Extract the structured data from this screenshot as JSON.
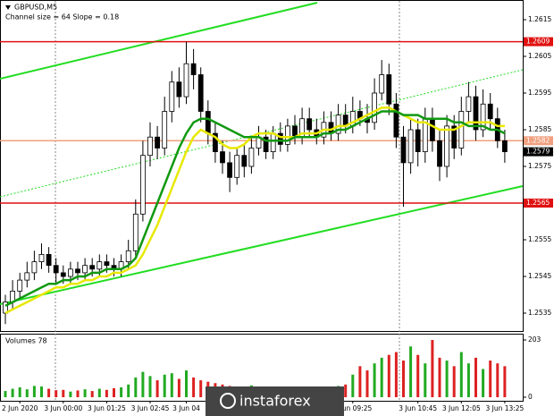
{
  "chart_data": {
    "type": "candlestick",
    "title": "GBPUSD,M5",
    "subtitle": "Channel size = 64 Slope = 0.18",
    "watermark": "instaforex",
    "categories": [
      null,
      null,
      "2 Jun 2020",
      null,
      null,
      null,
      null,
      null,
      "3 Jun 00:00",
      null,
      null,
      null,
      null,
      null,
      "3 Jun 01:25",
      null,
      null,
      null,
      null,
      null,
      "3 Jun 02:45",
      null,
      null,
      null,
      null,
      "3 Jun 04",
      null,
      null,
      null,
      null,
      null,
      null,
      null,
      null,
      null,
      null,
      null,
      null,
      null,
      null,
      null,
      null,
      null,
      null,
      null,
      null,
      null,
      null,
      "3 Jun 09:25",
      null,
      null,
      null,
      null,
      null,
      null,
      null,
      null,
      "3 Jun 10:45",
      null,
      null,
      null,
      null,
      null,
      "3 Jun 12:05",
      null,
      null,
      null,
      null,
      null,
      "3 Jun 13:25"
    ],
    "open": [
      1.2535,
      1.2538,
      1.2541,
      1.2544,
      1.2546,
      1.2549,
      1.2551,
      1.2548,
      1.2546,
      1.2545,
      1.2547,
      1.2546,
      1.2548,
      1.2547,
      1.2549,
      1.2548,
      1.2547,
      1.2549,
      1.2552,
      1.2562,
      1.2578,
      1.2583,
      1.258,
      1.259,
      1.2598,
      1.2594,
      1.2603,
      1.26,
      1.259,
      1.2584,
      1.2579,
      1.2576,
      1.2572,
      1.2578,
      1.2575,
      1.258,
      1.2583,
      1.2579,
      1.2584,
      1.2581,
      1.2586,
      1.2583,
      1.2588,
      1.2585,
      1.2583,
      1.2587,
      1.2584,
      1.2589,
      1.2586,
      1.259,
      1.2588,
      1.2587,
      1.2595,
      1.26,
      1.2592,
      1.2583,
      1.2576,
      1.2585,
      1.2579,
      1.2588,
      1.2582,
      1.2575,
      1.2586,
      1.258,
      1.259,
      1.2594,
      1.2585,
      1.2592,
      1.2588,
      1.2582
    ],
    "high": [
      1.254,
      1.2544,
      1.2546,
      1.2549,
      1.2552,
      1.2554,
      1.2553,
      1.255,
      1.2548,
      1.2549,
      1.2549,
      1.255,
      1.255,
      1.2551,
      1.2551,
      1.255,
      1.2551,
      1.2555,
      1.2566,
      1.2582,
      1.2587,
      1.2586,
      1.2594,
      1.2601,
      1.2602,
      1.2609,
      1.2607,
      1.2602,
      1.2593,
      1.2587,
      1.2582,
      1.2579,
      1.258,
      1.2581,
      1.2583,
      1.2586,
      1.2585,
      1.2586,
      1.2587,
      1.2588,
      1.2589,
      1.2591,
      1.2591,
      1.2588,
      1.259,
      1.259,
      1.2592,
      1.2592,
      1.2594,
      1.2593,
      1.2592,
      1.2599,
      1.2604,
      1.2603,
      1.2595,
      1.2586,
      1.2588,
      1.2588,
      1.2591,
      1.2591,
      1.2585,
      1.2589,
      1.2589,
      1.2594,
      1.2598,
      1.2597,
      1.2596,
      1.2595,
      1.2591,
      1.2585
    ],
    "low": [
      1.2532,
      1.2536,
      1.2539,
      1.2542,
      1.2544,
      1.2547,
      1.2546,
      1.2543,
      1.2543,
      1.2543,
      1.2544,
      1.2544,
      1.2545,
      1.2545,
      1.2546,
      1.2545,
      1.2545,
      1.2547,
      1.255,
      1.256,
      1.2575,
      1.2577,
      1.2578,
      1.2587,
      1.2591,
      1.2592,
      1.2596,
      1.2587,
      1.2581,
      1.2576,
      1.2573,
      1.2568,
      1.257,
      1.2572,
      1.2573,
      1.2578,
      1.2577,
      1.2577,
      1.2579,
      1.2579,
      1.2581,
      1.2581,
      1.2583,
      1.2581,
      1.2581,
      1.2582,
      1.2582,
      1.2584,
      1.2584,
      1.2586,
      1.2584,
      1.2585,
      1.2593,
      1.2589,
      1.258,
      1.2564,
      1.2573,
      1.2575,
      1.2576,
      1.2579,
      1.2571,
      1.2572,
      1.2577,
      1.2578,
      1.2587,
      1.2582,
      1.2583,
      1.2585,
      1.258,
      1.2576
    ],
    "close": [
      1.2538,
      1.2541,
      1.2544,
      1.2546,
      1.2549,
      1.2551,
      1.2548,
      1.2546,
      1.2545,
      1.2547,
      1.2546,
      1.2548,
      1.2547,
      1.2549,
      1.2548,
      1.2547,
      1.2549,
      1.2552,
      1.2562,
      1.2578,
      1.2583,
      1.258,
      1.259,
      1.2598,
      1.2594,
      1.2603,
      1.26,
      1.259,
      1.2584,
      1.2579,
      1.2576,
      1.2572,
      1.2578,
      1.2575,
      1.258,
      1.2583,
      1.2579,
      1.2584,
      1.2581,
      1.2586,
      1.2583,
      1.2588,
      1.2585,
      1.2583,
      1.2587,
      1.2584,
      1.2589,
      1.2586,
      1.259,
      1.2588,
      1.2587,
      1.2595,
      1.26,
      1.2592,
      1.2583,
      1.2576,
      1.2585,
      1.2579,
      1.2588,
      1.2582,
      1.2575,
      1.2586,
      1.258,
      1.259,
      1.2594,
      1.2585,
      1.2592,
      1.2588,
      1.2582,
      1.2579
    ],
    "series": [
      {
        "color": "#e8e800",
        "values": [
          1.2535,
          1.2536,
          1.2537,
          1.2538,
          1.2539,
          1.254,
          1.2541,
          1.2542,
          1.2542,
          1.2543,
          1.2543,
          1.2544,
          1.2544,
          1.2545,
          1.2545,
          1.2546,
          1.2546,
          1.2547,
          1.2548,
          1.2551,
          1.2555,
          1.2559,
          1.2564,
          1.2569,
          1.2574,
          1.2579,
          1.2583,
          1.2585,
          1.2584,
          1.2583,
          1.2581,
          1.258,
          1.258,
          1.2581,
          1.2583,
          1.2584,
          1.2584,
          1.2584,
          1.2583,
          1.2583,
          1.2583,
          1.2584,
          1.2584,
          1.2584,
          1.2585,
          1.2585,
          1.2586,
          1.2586,
          1.2587,
          1.2588,
          1.2589,
          1.259,
          1.2591,
          1.2591,
          1.259,
          1.2589,
          1.2588,
          1.2587,
          1.2587,
          1.2586,
          1.2585,
          1.2585,
          1.2585,
          1.2586,
          1.2587,
          1.2587,
          1.2587,
          1.2587,
          1.2586,
          1.2586
        ]
      },
      {
        "color": "#119911",
        "values": [
          1.2537,
          1.2538,
          1.2539,
          1.254,
          1.2541,
          1.2542,
          1.2543,
          1.2543,
          1.2544,
          1.2544,
          1.2545,
          1.2545,
          1.2546,
          1.2546,
          1.2547,
          1.2547,
          1.2547,
          1.2548,
          1.255,
          1.2555,
          1.256,
          1.2565,
          1.257,
          1.2575,
          1.258,
          1.2584,
          1.2587,
          1.2588,
          1.2588,
          1.2587,
          1.2586,
          1.2585,
          1.2584,
          1.2583,
          1.2583,
          1.2583,
          1.2582,
          1.2582,
          1.2582,
          1.2582,
          1.2583,
          1.2583,
          1.2583,
          1.2583,
          1.2584,
          1.2584,
          1.2585,
          1.2585,
          1.2586,
          1.2587,
          1.2588,
          1.2589,
          1.259,
          1.259,
          1.259,
          1.2589,
          1.2589,
          1.2589,
          1.2588,
          1.2588,
          1.2588,
          1.2588,
          1.2587,
          1.2587,
          1.2586,
          1.2586,
          1.2586,
          1.2585,
          1.2585,
          1.2584
        ]
      }
    ],
    "levels": [
      {
        "value": 1.2609,
        "color": "#e01010"
      },
      {
        "value": 1.2582,
        "color": "#f0a080"
      },
      {
        "value": 1.2565,
        "color": "#e01010"
      }
    ],
    "current": 1.2579,
    "ylim": [
      1.253,
      1.262
    ],
    "yticks": [
      1.2535,
      1.2545,
      1.2555,
      1.2575,
      1.2585,
      1.2595,
      1.2605,
      1.2615
    ],
    "volume_title": "Volumes 78",
    "volumes": [
      22,
      30,
      35,
      28,
      40,
      38,
      30,
      25,
      26,
      20,
      24,
      28,
      22,
      30,
      26,
      32,
      35,
      45,
      70,
      90,
      75,
      60,
      80,
      85,
      65,
      95,
      70,
      60,
      55,
      50,
      45,
      40,
      38,
      35,
      42,
      30,
      35,
      28,
      32,
      36,
      30,
      28,
      34,
      38,
      30,
      36,
      40,
      45,
      80,
      110,
      95,
      120,
      140,
      150,
      160,
      130,
      180,
      150,
      120,
      203,
      140,
      130,
      110,
      160,
      120,
      140,
      100,
      130,
      120,
      110
    ],
    "vlim": [
      0,
      203
    ],
    "vticks": [
      0,
      203
    ]
  }
}
